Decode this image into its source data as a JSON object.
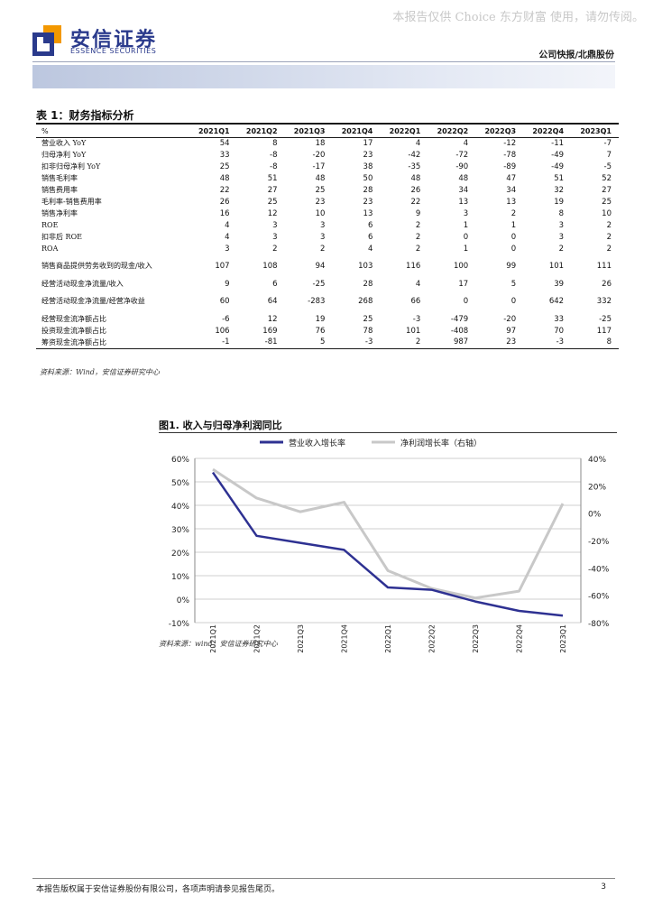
{
  "watermark": "本报告仅供 Choice 东方财富 使用，请勿传阅。",
  "logo": {
    "cn": "安信证券",
    "en": "ESSENCE SECURITIES"
  },
  "report_type": "公司快报/北鼎股份",
  "table": {
    "title": "表 1：财务指标分析",
    "unit": "%",
    "columns": [
      "2021Q1",
      "2021Q2",
      "2021Q3",
      "2021Q4",
      "2022Q1",
      "2022Q2",
      "2022Q3",
      "2022Q4",
      "2023Q1"
    ],
    "rows": [
      {
        "label": "营业收入 YoY",
        "values": [
          "54",
          "8",
          "18",
          "17",
          "4",
          "4",
          "-12",
          "-11",
          "-7"
        ]
      },
      {
        "label": "归母净利 YoY",
        "values": [
          "33",
          "-8",
          "-20",
          "23",
          "-42",
          "-72",
          "-78",
          "-49",
          "7"
        ]
      },
      {
        "label": "扣非归母净利 YoY",
        "values": [
          "25",
          "-8",
          "-17",
          "38",
          "-35",
          "-90",
          "-89",
          "-49",
          "-5"
        ]
      },
      {
        "label": "销售毛利率",
        "values": [
          "48",
          "51",
          "48",
          "50",
          "48",
          "48",
          "47",
          "51",
          "52"
        ]
      },
      {
        "label": "销售费用率",
        "values": [
          "22",
          "27",
          "25",
          "28",
          "26",
          "34",
          "34",
          "32",
          "27"
        ]
      },
      {
        "label": "毛利率-销售费用率",
        "values": [
          "26",
          "25",
          "23",
          "23",
          "22",
          "13",
          "13",
          "19",
          "25"
        ]
      },
      {
        "label": "销售净利率",
        "values": [
          "16",
          "12",
          "10",
          "13",
          "9",
          "3",
          "2",
          "8",
          "10"
        ]
      },
      {
        "label": "ROE",
        "values": [
          "4",
          "3",
          "3",
          "6",
          "2",
          "1",
          "1",
          "3",
          "2"
        ]
      },
      {
        "label": "扣非后 ROE",
        "values": [
          "4",
          "3",
          "3",
          "6",
          "2",
          "0",
          "0",
          "3",
          "2"
        ]
      },
      {
        "label": "ROA",
        "values": [
          "3",
          "2",
          "2",
          "4",
          "2",
          "1",
          "0",
          "2",
          "2"
        ]
      },
      {
        "label": "销售商品提供劳务收到的现金/收入",
        "values": [
          "107",
          "108",
          "94",
          "103",
          "116",
          "100",
          "99",
          "101",
          "111"
        ],
        "tall": true
      },
      {
        "label": "经营活动现金净流量/收入",
        "values": [
          "9",
          "6",
          "-25",
          "28",
          "4",
          "17",
          "5",
          "39",
          "26"
        ]
      },
      {
        "label": "经营活动现金净流量/经营净收益",
        "values": [
          "60",
          "64",
          "-283",
          "268",
          "66",
          "0",
          "0",
          "642",
          "332"
        ],
        "tall": true
      },
      {
        "label": "经营现金流净额占比",
        "values": [
          "-6",
          "12",
          "19",
          "25",
          "-3",
          "-479",
          "-20",
          "33",
          "-25"
        ]
      },
      {
        "label": "投资现金流净额占比",
        "values": [
          "106",
          "169",
          "76",
          "78",
          "101",
          "-408",
          "97",
          "70",
          "117"
        ]
      },
      {
        "label": "筹资现金流净额占比",
        "values": [
          "-1",
          "-81",
          "5",
          "-3",
          "2",
          "987",
          "23",
          "-3",
          "8"
        ]
      }
    ],
    "source": "资料来源：Wind，安信证券研究中心"
  },
  "figure": {
    "title": "图1. 收入与归母净利润同比",
    "source": "资料来源：wind，安信证券研究中心"
  },
  "chart_data": {
    "type": "line",
    "title": "图1. 收入与归母净利润同比",
    "categories": [
      "2021Q1",
      "2021Q2",
      "2021Q3",
      "2021Q4",
      "2022Q1",
      "2022Q2",
      "2022Q3",
      "2022Q4",
      "2023Q1"
    ],
    "series": [
      {
        "name": "营业收入增长率",
        "axis": "left",
        "color": "#2e3192",
        "values": [
          54,
          27,
          24,
          21,
          5,
          4,
          -1,
          -5,
          -7
        ]
      },
      {
        "name": "净利润增长率（右轴）",
        "axis": "right",
        "color": "#c8c8c8",
        "values": [
          32,
          11,
          1,
          8,
          -42,
          -55,
          -62,
          -57,
          7
        ]
      }
    ],
    "left_axis": {
      "min": -10,
      "max": 60,
      "step": 10,
      "format": "percent",
      "ticks": [
        "60%",
        "50%",
        "40%",
        "30%",
        "20%",
        "10%",
        "0%",
        "-10%"
      ]
    },
    "right_axis": {
      "min": -80,
      "max": 40,
      "step": 20,
      "format": "percent",
      "ticks": [
        "40%",
        "20%",
        "0%",
        "-20%",
        "-40%",
        "-60%",
        "-80%"
      ]
    },
    "legend_position": "top",
    "grid": true
  },
  "footer": {
    "text": "本报告版权属于安信证券股份有限公司，各项声明请参见报告尾页。",
    "page": "3"
  }
}
